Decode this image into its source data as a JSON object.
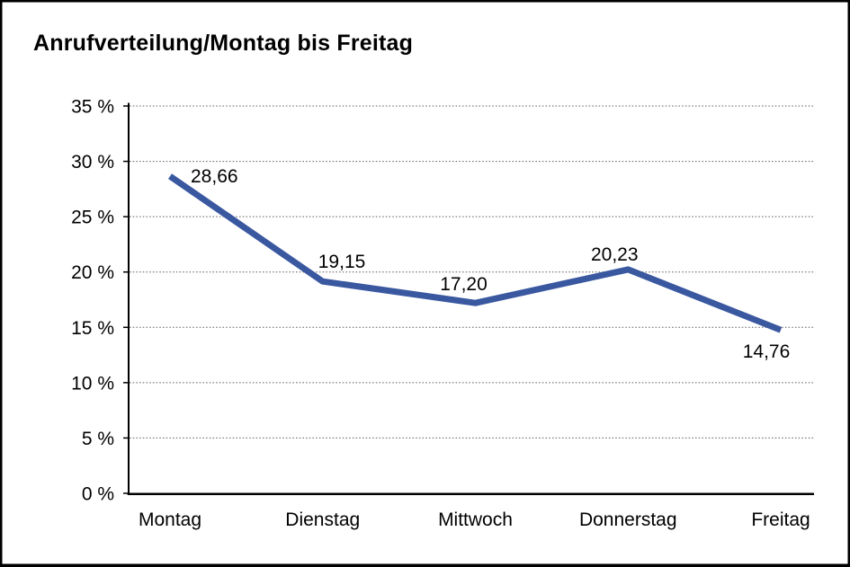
{
  "colors": {
    "background_color": "#FFFFFF",
    "border_color": "#000000",
    "axis_color": "#000000",
    "grid_color": "#595959",
    "text_color": "#000000",
    "line_color": "#3A58A0"
  },
  "chart_data": {
    "type": "line",
    "title": "Anrufverteilung/Montag bis Freitag",
    "categories": [
      "Montag",
      "Dienstag",
      "Mittwoch",
      "Donnerstag",
      "Freitag"
    ],
    "values": [
      28.66,
      19.15,
      17.2,
      20.23,
      14.76
    ],
    "point_labels": [
      "28,66",
      "19,15",
      "17,20",
      "20,23",
      "14,76"
    ],
    "decimal_separator": ",",
    "xlabel": "",
    "ylabel": "",
    "ylim": [
      0,
      35
    ],
    "y_tick_interval": 5,
    "y_tick_labels": [
      "0 %",
      "5 %",
      "10 %",
      "15 %",
      "20 %",
      "25 %",
      "30 %",
      "35 %"
    ],
    "grid": {
      "horizontal": true,
      "vertical": false,
      "style": "dotted"
    },
    "legend": "none",
    "line_color": "#3A58A0",
    "line_width": 7
  }
}
